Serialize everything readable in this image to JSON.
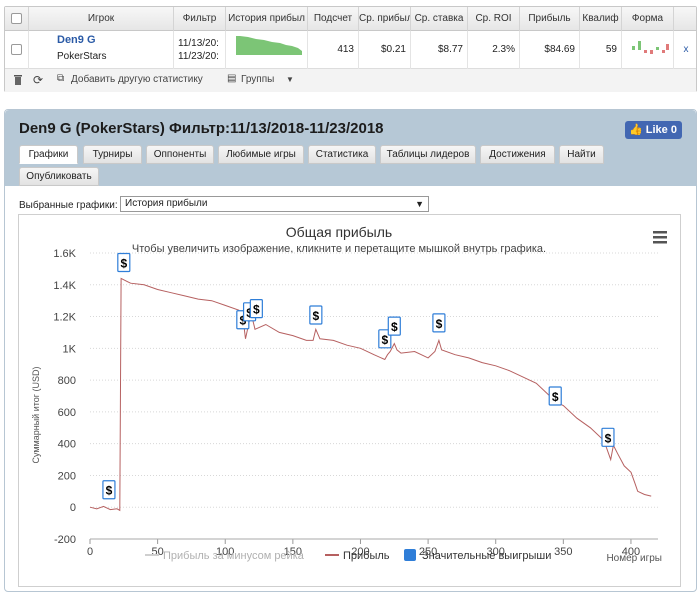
{
  "stats_table": {
    "columns": [
      "Игрок",
      "Фильтр",
      "История прибыл",
      "Подсчет",
      "Ср. прибыл",
      "Ср. ставка",
      "Ср. ROI",
      "Прибыль",
      "Квалиф",
      "Форма"
    ],
    "row": {
      "player_name": "Den9 G",
      "site": "PokerStars",
      "filter_line1": "11/13/20:",
      "filter_line2": "11/23/20:",
      "count": "413",
      "avg_profit": "$0.21",
      "avg_stake": "$8.77",
      "avg_roi": "2.3%",
      "profit": "$84.69",
      "qualif": "59",
      "remove": "x"
    },
    "toolbar": {
      "add_stat": "Добавить другую статистику",
      "groups": "Группы"
    }
  },
  "panel": {
    "title": "Den9 G (PokerStars) Фильтр:11/13/2018-11/23/2018",
    "like_label": "Like 0",
    "tabs": [
      "Графики",
      "Турниры",
      "Оппоненты",
      "Любимые игры",
      "Статистика",
      "Таблицы лидеров",
      "Достижения",
      "Найти",
      "Опубликовать"
    ],
    "active_tab": "Графики",
    "selected_charts_label": "Выбранные графики:",
    "selected_chart": "История прибыли",
    "accent": "#2f7ed8"
  },
  "chart_data": {
    "type": "line",
    "title": "Общая прибыль",
    "subtitle": "Чтобы увеличить изображение, кликните и перетащите мышкой внутрь графика.",
    "xlabel": "Номер игры",
    "ylabel": "Суммарный итог (USD)",
    "xlim": [
      0,
      420
    ],
    "ylim": [
      -200,
      1600
    ],
    "x_ticks": [
      "0",
      "50",
      "100",
      "150",
      "200",
      "250",
      "300",
      "350",
      "400"
    ],
    "y_ticks": [
      "-200",
      "0",
      "200",
      "400",
      "600",
      "800",
      "1K",
      "1.2K",
      "1.4K",
      "1.6K"
    ],
    "grid": true,
    "legend": [
      "Прибыль за минусом рейка",
      "Прибыль",
      "Значительные выигрыши"
    ],
    "legend_position": "bottom",
    "series": [
      {
        "name": "Прибыль",
        "color": "#b66060",
        "points": [
          [
            0,
            0
          ],
          [
            5,
            -10
          ],
          [
            10,
            5
          ],
          [
            15,
            -15
          ],
          [
            20,
            -10
          ],
          [
            22,
            -20
          ],
          [
            23,
            1440
          ],
          [
            30,
            1410
          ],
          [
            40,
            1400
          ],
          [
            50,
            1370
          ],
          [
            60,
            1350
          ],
          [
            70,
            1330
          ],
          [
            80,
            1310
          ],
          [
            90,
            1300
          ],
          [
            100,
            1270
          ],
          [
            110,
            1240
          ],
          [
            113,
            1200
          ],
          [
            115,
            1060
          ],
          [
            118,
            1180
          ],
          [
            120,
            1190
          ],
          [
            122,
            1120
          ],
          [
            130,
            1150
          ],
          [
            140,
            1100
          ],
          [
            150,
            1080
          ],
          [
            160,
            1050
          ],
          [
            165,
            1050
          ],
          [
            167,
            1120
          ],
          [
            170,
            1060
          ],
          [
            180,
            1050
          ],
          [
            190,
            1020
          ],
          [
            200,
            1000
          ],
          [
            210,
            960
          ],
          [
            218,
            930
          ],
          [
            220,
            960
          ],
          [
            222,
            980
          ],
          [
            225,
            1030
          ],
          [
            227,
            990
          ],
          [
            230,
            970
          ],
          [
            240,
            980
          ],
          [
            245,
            960
          ],
          [
            250,
            940
          ],
          [
            255,
            980
          ],
          [
            258,
            1050
          ],
          [
            260,
            990
          ],
          [
            270,
            960
          ],
          [
            280,
            940
          ],
          [
            290,
            910
          ],
          [
            300,
            890
          ],
          [
            310,
            860
          ],
          [
            320,
            820
          ],
          [
            330,
            780
          ],
          [
            340,
            700
          ],
          [
            345,
            660
          ],
          [
            350,
            640
          ],
          [
            360,
            560
          ],
          [
            370,
            500
          ],
          [
            380,
            420
          ],
          [
            385,
            300
          ],
          [
            387,
            390
          ],
          [
            390,
            340
          ],
          [
            395,
            260
          ],
          [
            400,
            220
          ],
          [
            403,
            150
          ],
          [
            405,
            100
          ],
          [
            410,
            80
          ],
          [
            415,
            70
          ]
        ]
      }
    ],
    "big_wins": [
      [
        14,
        110
      ],
      [
        25,
        1540
      ],
      [
        113,
        1180
      ],
      [
        118,
        1230
      ],
      [
        123,
        1250
      ],
      [
        167,
        1210
      ],
      [
        218,
        1060
      ],
      [
        225,
        1140
      ],
      [
        258,
        1160
      ],
      [
        344,
        700
      ],
      [
        383,
        440
      ]
    ],
    "big_win_symbol": "$"
  }
}
